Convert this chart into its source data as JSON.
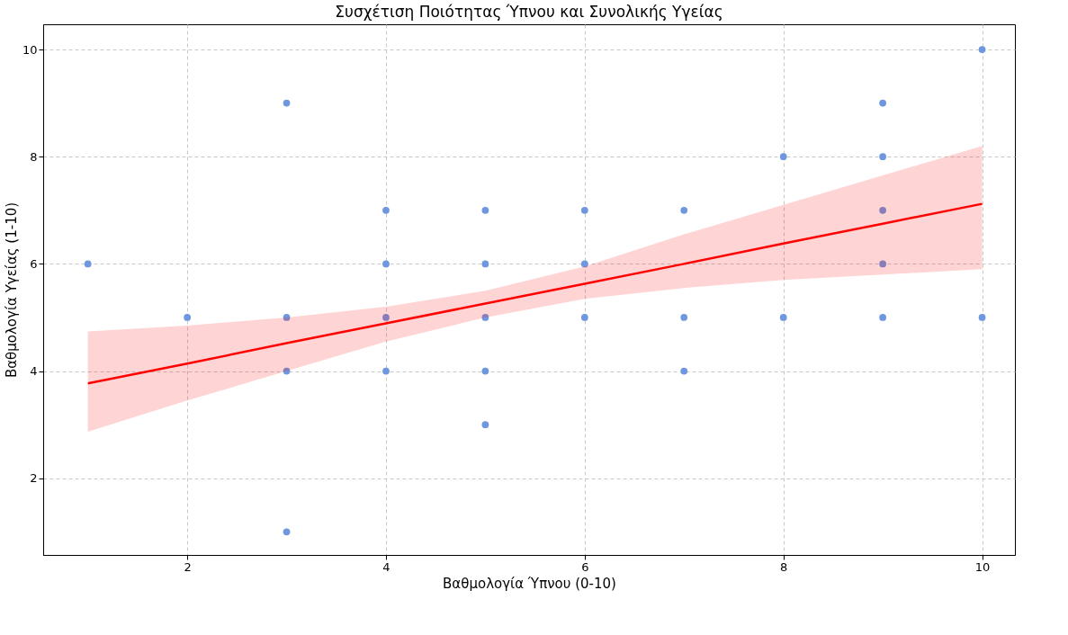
{
  "chart_data": {
    "type": "scatter",
    "title": "Συσχέτιση Ποιότητας Ύπνου και Συνολικής Υγείας",
    "xlabel": "Βαθμολογία Ύπνου (0-10)",
    "ylabel": "Βαθμολογία Υγείας (1-10)",
    "xlim": [
      0.55,
      10.33
    ],
    "ylim": [
      0.57,
      10.47
    ],
    "xticks": [
      2,
      4,
      6,
      8,
      10
    ],
    "yticks": [
      2,
      4,
      6,
      8,
      10
    ],
    "grid": true,
    "series": [
      {
        "marker": "circle",
        "color": "#6f97e0",
        "x": [
          1,
          2,
          3,
          3,
          3,
          3,
          4,
          4,
          4,
          4,
          5,
          5,
          5,
          5,
          5,
          6,
          6,
          6,
          7,
          7,
          7,
          8,
          8,
          9,
          9,
          9,
          9,
          9,
          10,
          10
        ],
        "values": [
          6,
          5,
          9,
          5,
          4,
          1,
          7,
          6,
          5,
          4,
          7,
          6,
          5,
          4,
          3,
          7,
          6,
          5,
          7,
          5,
          4,
          8,
          5,
          9,
          8,
          7,
          6,
          5,
          10,
          5
        ]
      },
      {
        "type": "line",
        "color": "#ff0000",
        "x": [
          1,
          2,
          3,
          4,
          5,
          6,
          7,
          8,
          9,
          10
        ],
        "values": [
          3.77,
          4.14,
          4.52,
          4.89,
          5.26,
          5.63,
          6.0,
          6.38,
          6.75,
          7.12
        ],
        "lower": [
          2.87,
          3.45,
          4.0,
          4.55,
          5.0,
          5.35,
          5.55,
          5.7,
          5.8,
          5.9
        ],
        "upper": [
          4.74,
          4.85,
          5.0,
          5.2,
          5.5,
          5.95,
          6.55,
          7.1,
          7.65,
          8.2
        ]
      }
    ]
  }
}
